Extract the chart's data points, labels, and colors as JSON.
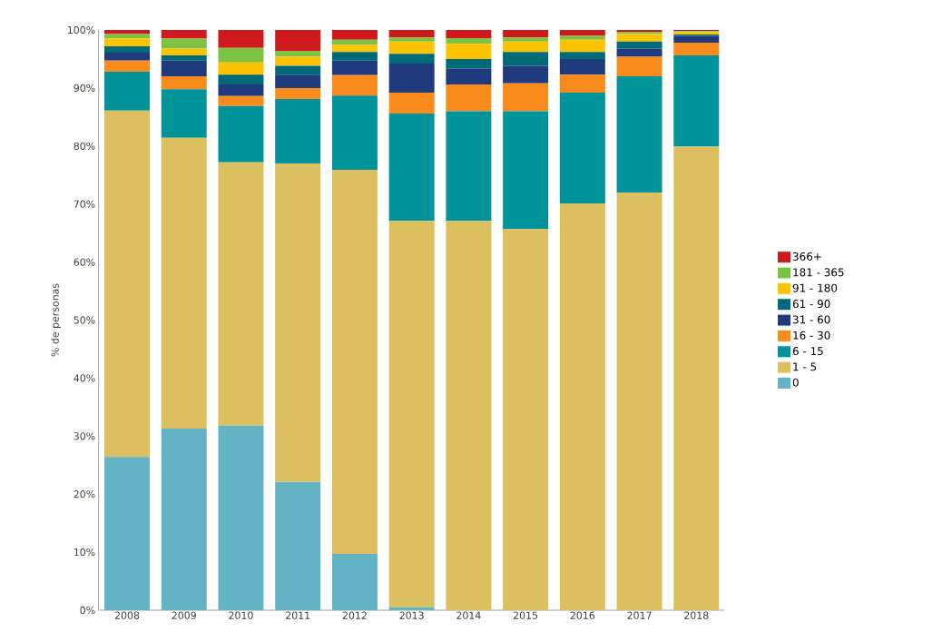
{
  "chart_data": {
    "type": "bar",
    "stacked": true,
    "ylabel": "% de personas",
    "categories": [
      "2008",
      "2009",
      "2010",
      "2011",
      "2012",
      "2013",
      "2014",
      "2015",
      "2016",
      "2017",
      "2018"
    ],
    "series": [
      {
        "name": "0",
        "color": "#62b3c3",
        "values": [
          26.4,
          31.3,
          31.8,
          22.1,
          9.7,
          0.5,
          0,
          0,
          0,
          0,
          0
        ]
      },
      {
        "name": "1 - 5",
        "color": "#dcbf5e",
        "values": [
          59.7,
          50.1,
          45.4,
          54.9,
          66.2,
          66.6,
          67.1,
          65.7,
          70.1,
          72.0,
          79.9
        ]
      },
      {
        "name": "6 - 15",
        "color": "#00939a",
        "values": [
          6.7,
          8.4,
          9.7,
          11.1,
          12.8,
          18.5,
          18.9,
          20.3,
          19.1,
          20.0,
          15.7
        ]
      },
      {
        "name": "16 - 30",
        "color": "#f98a1c",
        "values": [
          1.9,
          2.2,
          1.7,
          1.9,
          3.5,
          3.6,
          4.6,
          4.8,
          3.1,
          3.4,
          2.2
        ]
      },
      {
        "name": "31 - 60",
        "color": "#1f3a7d",
        "values": [
          1.4,
          2.7,
          2.0,
          2.3,
          2.5,
          5.0,
          2.7,
          3.0,
          2.7,
          1.4,
          1.2
        ]
      },
      {
        "name": "61 - 90",
        "color": "#006b78",
        "values": [
          1.1,
          0.9,
          1.7,
          1.5,
          1.5,
          1.7,
          1.7,
          2.4,
          1.2,
          1.2,
          0.2
        ]
      },
      {
        "name": "91 - 180",
        "color": "#fdc300",
        "values": [
          1.3,
          1.2,
          2.1,
          1.6,
          1.2,
          2.1,
          2.6,
          1.8,
          2.1,
          1.3,
          0.4
        ]
      },
      {
        "name": "181 - 365",
        "color": "#7dc242",
        "values": [
          0.8,
          1.7,
          2.5,
          1.0,
          0.9,
          0.7,
          1.0,
          0.7,
          0.7,
          0.4,
          0.2
        ]
      },
      {
        "name": "366+",
        "color": "#d0191d",
        "values": [
          0.7,
          1.5,
          3.1,
          3.6,
          1.7,
          1.3,
          1.4,
          1.3,
          1.0,
          0.3,
          0.2
        ]
      }
    ],
    "ylim": [
      0,
      100
    ],
    "yticks": [
      {
        "value": 0,
        "label": "0%"
      },
      {
        "value": 10,
        "label": "10%"
      },
      {
        "value": 20,
        "label": "20%"
      },
      {
        "value": 30,
        "label": "30%"
      },
      {
        "value": 40,
        "label": "40%"
      },
      {
        "value": 50,
        "label": "50%"
      },
      {
        "value": 60,
        "label": "60%"
      },
      {
        "value": 70,
        "label": "70%"
      },
      {
        "value": 80,
        "label": "80%"
      },
      {
        "value": 90,
        "label": "90%"
      },
      {
        "value": 100,
        "label": "100%"
      }
    ],
    "legend": "right"
  }
}
